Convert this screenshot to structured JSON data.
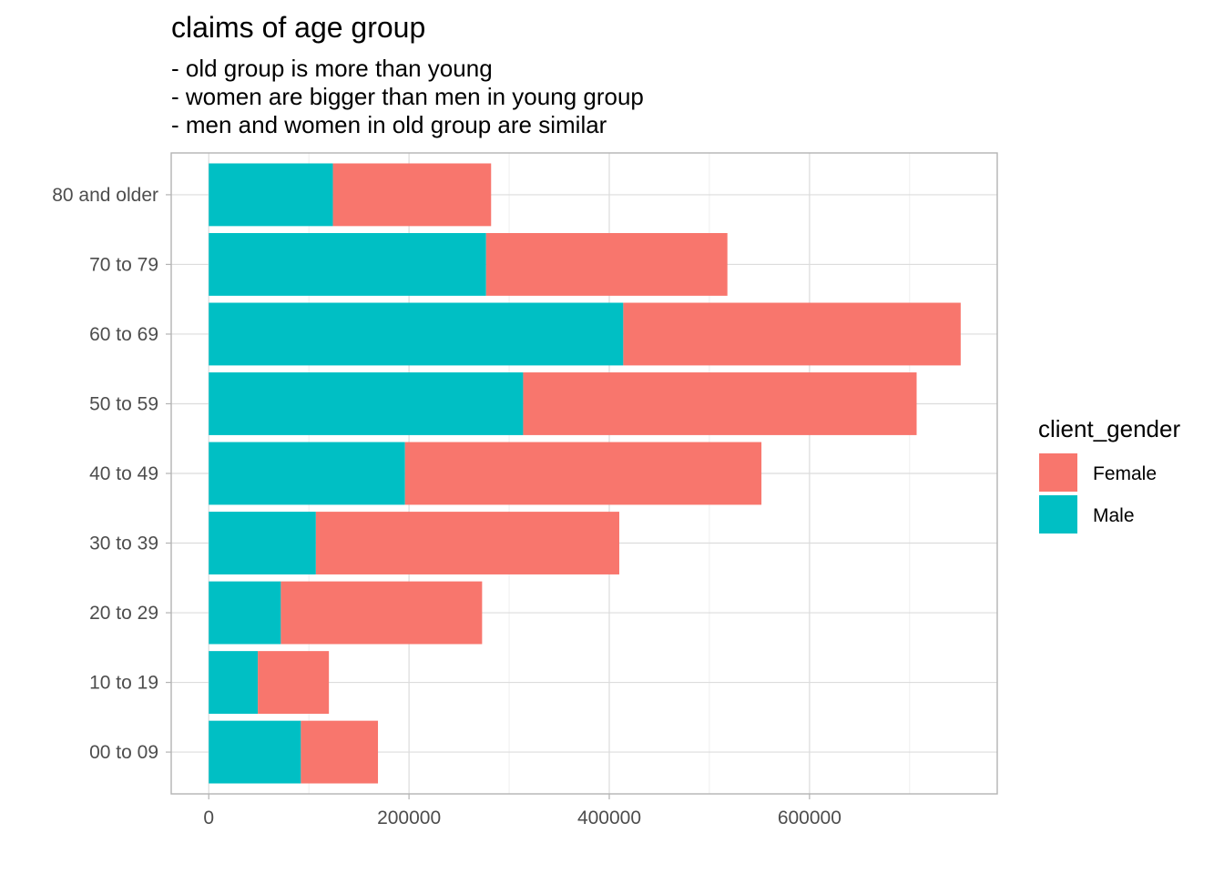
{
  "chart_data": {
    "type": "bar",
    "orientation": "horizontal",
    "stacked": true,
    "title": "claims of age group",
    "subtitle": [
      "- old group is more than young",
      "- women are bigger than men in young group",
      "- men and women in old group are similar"
    ],
    "categories": [
      "00 to 09",
      "10 to 19",
      "20 to 29",
      "30 to 39",
      "40 to 49",
      "50 to 59",
      "60 to 69",
      "70 to 79",
      "80 and older"
    ],
    "series": [
      {
        "name": "Male",
        "color": "#00BFC4",
        "values": [
          92000,
          49000,
          72000,
          107000,
          196000,
          314000,
          414000,
          277000,
          124000
        ]
      },
      {
        "name": "Female",
        "color": "#F8766D",
        "values": [
          77000,
          71000,
          201000,
          303000,
          356000,
          393000,
          337000,
          241000,
          158000
        ]
      }
    ],
    "xticks": [
      0,
      200000,
      400000,
      600000
    ],
    "xtick_labels": [
      "0",
      "200000",
      "400000",
      "600000"
    ],
    "xlim": [
      -37500,
      787500
    ],
    "xlabel": "",
    "ylabel": "",
    "grid": true,
    "legend": {
      "title": "client_gender",
      "position": "right",
      "items": [
        {
          "label": "Female",
          "color": "#F8766D"
        },
        {
          "label": "Male",
          "color": "#00BFC4"
        }
      ]
    }
  }
}
